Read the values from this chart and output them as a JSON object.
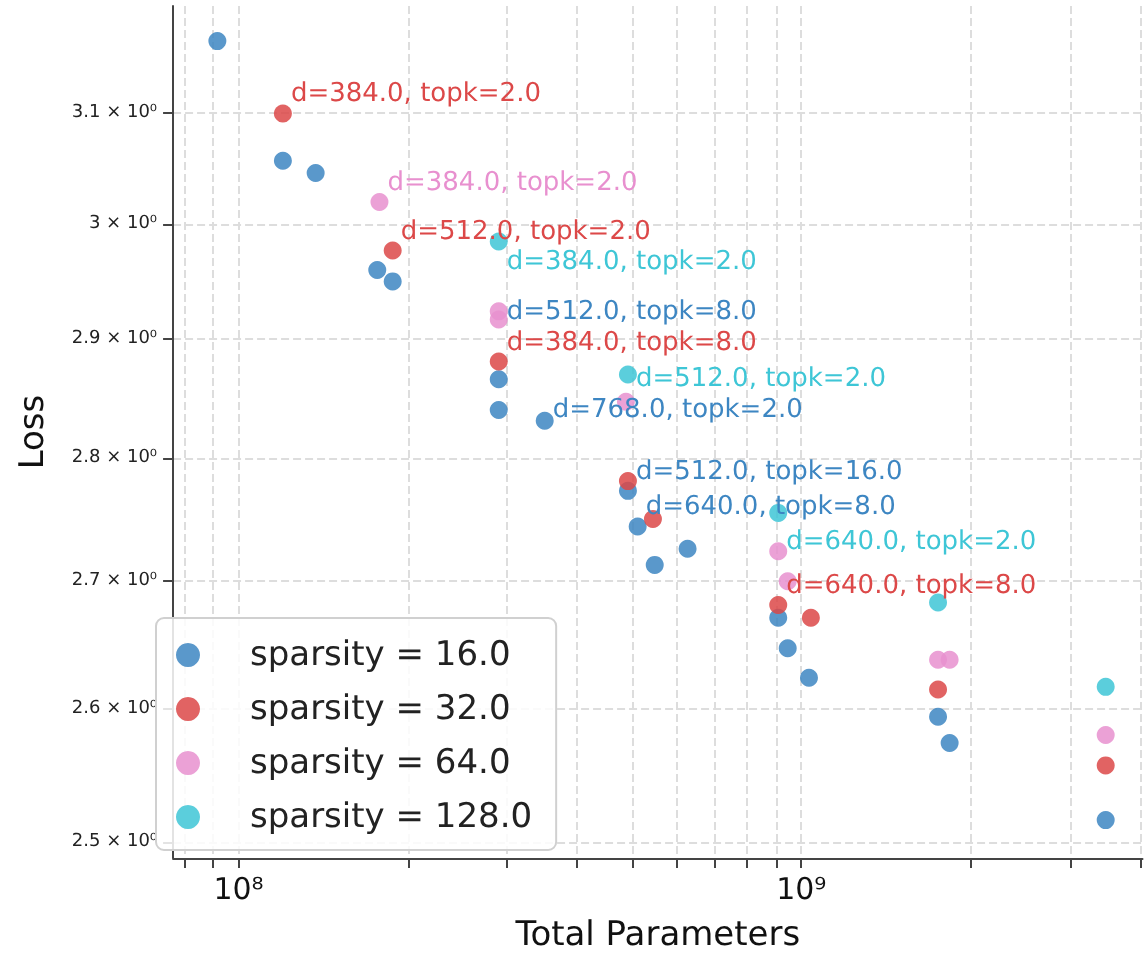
{
  "chart_data": {
    "type": "scatter",
    "xlabel": "Total Parameters",
    "ylabel": "Loss",
    "log": "xy",
    "grid": true,
    "legend": "bottom left",
    "marker": "circle",
    "xlim": [
      76500000,
      4040000000
    ],
    "ylim": [
      2.488,
      3.2
    ],
    "xticks": [
      {
        "value": 80000000,
        "label": null
      },
      {
        "value": 90000000,
        "label": null
      },
      {
        "value": 100000000,
        "label": "10⁸"
      },
      {
        "value": 200000000,
        "label": null
      },
      {
        "value": 300000000,
        "label": null
      },
      {
        "value": 400000000,
        "label": null
      },
      {
        "value": 500000000,
        "label": null
      },
      {
        "value": 600000000,
        "label": null
      },
      {
        "value": 700000000,
        "label": null
      },
      {
        "value": 800000000,
        "label": null
      },
      {
        "value": 900000000,
        "label": null
      },
      {
        "value": 1000000000,
        "label": "10⁹"
      },
      {
        "value": 2000000000,
        "label": null
      },
      {
        "value": 3000000000,
        "label": null
      },
      {
        "value": 4000000000,
        "label": null
      }
    ],
    "yticks": [
      {
        "value": 2.5,
        "label": "2.5 × 10⁰"
      },
      {
        "value": 2.6,
        "label": "2.6 × 10⁰"
      },
      {
        "value": 2.7,
        "label": "2.7 × 10⁰"
      },
      {
        "value": 2.8,
        "label": "2.8 × 10⁰"
      },
      {
        "value": 2.9,
        "label": "2.9 × 10⁰"
      },
      {
        "value": 3.0,
        "label": "3 × 10⁰"
      },
      {
        "value": 3.1,
        "label": "3.1 × 10⁰"
      }
    ],
    "series": [
      {
        "name": "sparsity = 16.0",
        "color": "#3d86c2",
        "x": [
          91700000,
          119900000,
          137100000,
          176400000,
          187900000,
          290000000,
          290000000,
          350000000,
          492000000,
          512000000,
          549000000,
          628000000,
          910000000,
          946000000,
          1032000000,
          1750000000,
          1835000000,
          3475000000
        ],
        "values": [
          3.167,
          3.057,
          3.046,
          2.96,
          2.95,
          2.866,
          2.84,
          2.831,
          2.773,
          2.744,
          2.713,
          2.726,
          2.671,
          2.647,
          2.624,
          2.594,
          2.574,
          2.516
        ]
      },
      {
        "name": "sparsity = 32.0",
        "color": "#dc4848",
        "x": [
          119900000,
          187900000,
          290000000,
          492000000,
          545000000,
          910000000,
          1040000000,
          1750000000,
          3475000000
        ],
        "values": [
          3.1,
          2.977,
          2.881,
          2.781,
          2.75,
          2.681,
          2.671,
          2.615,
          2.557
        ]
      },
      {
        "name": "sparsity = 64.0",
        "color": "#e890cf",
        "x": [
          178000000,
          290000000,
          290000000,
          488000000,
          910000000,
          946000000,
          1750000000,
          1835000000,
          3475000000
        ],
        "values": [
          3.02,
          2.924,
          2.917,
          2.847,
          2.724,
          2.7,
          2.638,
          2.638,
          2.58
        ]
      },
      {
        "name": "sparsity = 128.0",
        "color": "#3ec6d6",
        "x": [
          290000000,
          492000000,
          910000000,
          1750000000,
          3475000000
        ],
        "values": [
          2.985,
          2.87,
          2.755,
          2.683,
          2.617
        ]
      }
    ],
    "annotations": [
      {
        "text": "d=384.0, topk=2.0",
        "x": 119900000,
        "y": 3.1
      },
      {
        "text": "d=384.0, topk=2.0",
        "x": 178000000,
        "y": 3.02
      },
      {
        "text": "d=512.0, topk=2.0",
        "x": 187900000,
        "y": 2.977
      },
      {
        "text": "d=384.0, topk=2.0",
        "x": 290000000,
        "y": 2.985
      },
      {
        "text": "d=384.0, topk=8.0",
        "x": 290000000,
        "y": 2.881
      },
      {
        "text": "d=512.0, topk=2.0",
        "x": 492000000,
        "y": 2.87
      },
      {
        "text": "d=512.0, topk=8.0",
        "x": 290000000,
        "y": 2.866
      },
      {
        "text": "d=768.0, topk=2.0",
        "x": 350000000,
        "y": 2.831
      },
      {
        "text": "d=512.0, topk=16.0",
        "x": 492000000,
        "y": 2.773
      },
      {
        "text": "d=640.0, topk=8.0",
        "x": 512000000,
        "y": 2.744
      },
      {
        "text": "d=640.0, topk=2.0",
        "x": 910000000,
        "y": 2.755
      },
      {
        "text": "d=640.0, topk=8.0",
        "x": 910000000,
        "y": 2.681
      }
    ]
  }
}
